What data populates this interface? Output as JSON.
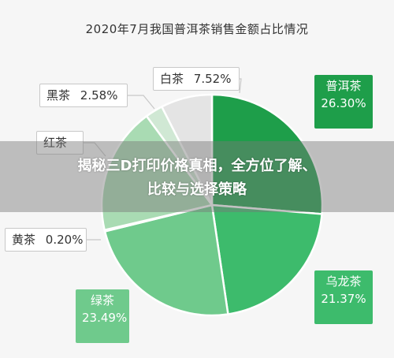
{
  "chart_data": {
    "type": "pie",
    "title": "2020年7月我国普洱茶销售金额占比情况",
    "slices": [
      {
        "name": "普洱茶",
        "label": "26.30%",
        "value": 26.3,
        "color": "#1e9e4a"
      },
      {
        "name": "乌龙茶",
        "label": "21.37%",
        "value": 21.37,
        "color": "#3dbb6c"
      },
      {
        "name": "绿茶",
        "label": "23.49%",
        "value": 23.49,
        "color": "#6fca8c"
      },
      {
        "name": "黄茶",
        "label": "0.20%",
        "value": 0.2,
        "color": "#b0e0bb"
      },
      {
        "name": "红茶",
        "label": "",
        "value": 18.54,
        "color": "#a9dbb3"
      },
      {
        "name": "黑茶",
        "label": "2.58%",
        "value": 2.58,
        "color": "#d0e8d4"
      },
      {
        "name": "白茶",
        "label": "7.52%",
        "value": 7.52,
        "color": "#e4e4e4"
      }
    ],
    "callouts": [
      {
        "name": "普洱茶",
        "pct": "26.30%"
      },
      {
        "name": "乌龙茶",
        "pct": "21.37%"
      },
      {
        "name": "绿茶",
        "pct": "23.49%"
      },
      {
        "name": "黄茶",
        "pct": "0.20%"
      },
      {
        "name": "红茶",
        "pct": ""
      },
      {
        "name": "黑茶",
        "pct": "2.58%"
      },
      {
        "name": "白茶",
        "pct": "7.52%"
      }
    ]
  },
  "banner": {
    "line1": "揭秘三D打印价格真相，全方位了解、",
    "line2": "比较与选择策略"
  }
}
